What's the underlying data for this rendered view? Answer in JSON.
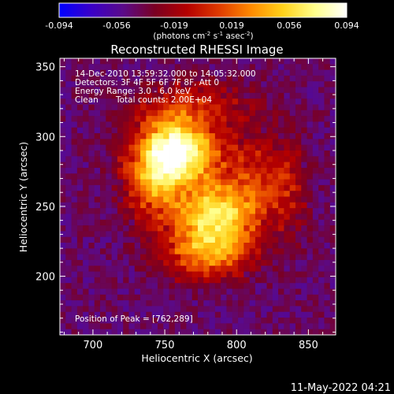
{
  "chart_data": {
    "type": "heatmap",
    "title": "Reconstructed RHESSI Image",
    "colorbar": {
      "ticks": [
        "-0.094",
        "-0.056",
        "-0.019",
        "0.019",
        "0.056",
        "0.094"
      ],
      "tick_values": [
        -0.094,
        -0.056,
        -0.019,
        0.019,
        0.056,
        0.094
      ],
      "range": [
        -0.094,
        0.094
      ],
      "label_main": "(photons cm",
      "label_exp1": "-2",
      "label_mid1": " s",
      "label_exp2": "-1",
      "label_mid2": " asec",
      "label_exp3": "-2",
      "label_end": ")",
      "stops": [
        "#0000ff",
        "#3a00c8",
        "#5a0a8a",
        "#7a0022",
        "#b40000",
        "#e03a00",
        "#ff8a00",
        "#ffd21a",
        "#ffff8c",
        "#ffffff"
      ]
    },
    "annotations": {
      "line1": "14-Dec-2010 13:59:32.000 to 14:05:32.000",
      "line2": "Detectors: 3F 4F 5F 6F 7F 8F, Att 0",
      "line3": "Energy Range: 3.0 - 6.0 keV",
      "line4a": "Clean",
      "line4b": "Total counts: 2.00E+04",
      "peak": "Position of Peak = [762,289]"
    },
    "xlabel": "Heliocentric X (arcsec)",
    "ylabel": "Heliocentric Y (arcsec)",
    "xlim": [
      677,
      869
    ],
    "ylim": [
      158,
      356
    ],
    "xticks": [
      700,
      750,
      800,
      850
    ],
    "yticks": [
      200,
      250,
      300,
      350
    ],
    "peak": [
      762,
      289
    ],
    "background_value": -0.045,
    "sources": [
      {
        "x": 762,
        "y": 289,
        "amp": 0.094,
        "sx": 18,
        "sy": 16
      },
      {
        "x": 785,
        "y": 243,
        "amp": 0.08,
        "sx": 20,
        "sy": 17
      },
      {
        "x": 742,
        "y": 272,
        "amp": 0.055,
        "sx": 14,
        "sy": 22
      },
      {
        "x": 778,
        "y": 215,
        "amp": 0.045,
        "sx": 20,
        "sy": 12
      },
      {
        "x": 812,
        "y": 272,
        "amp": 0.03,
        "sx": 14,
        "sy": 24
      },
      {
        "x": 836,
        "y": 262,
        "amp": 0.022,
        "sx": 10,
        "sy": 24
      },
      {
        "x": 770,
        "y": 322,
        "amp": 0.03,
        "sx": 26,
        "sy": 12
      }
    ]
  },
  "footer": {
    "timestamp": "11-May-2022 04:21"
  }
}
